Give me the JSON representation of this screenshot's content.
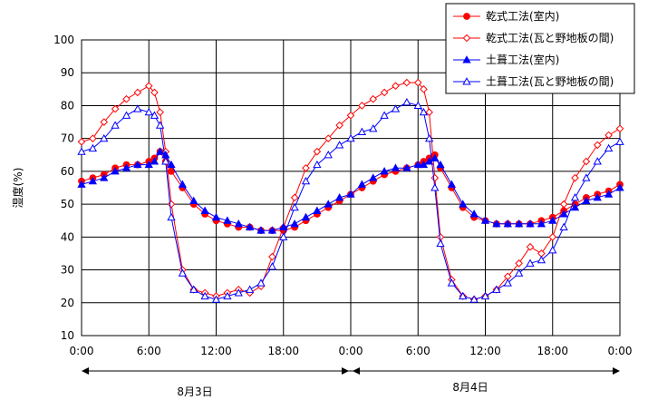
{
  "chart_data": {
    "type": "line",
    "ylabel": "湿度(%)",
    "xlabel": "",
    "ylim": [
      10,
      100
    ],
    "yticks": [
      "10",
      "20",
      "30",
      "40",
      "50",
      "60",
      "70",
      "80",
      "90",
      "100"
    ],
    "xticks": [
      "0:00",
      "6:00",
      "12:00",
      "18:00",
      "0:00",
      "6:00",
      "12:00",
      "18:00",
      "0:00"
    ],
    "xlim_hours": [
      0,
      48
    ],
    "grid": true,
    "legend_position": "top-right",
    "date_labels": [
      "8月3日",
      "8月4日"
    ],
    "x_hours": [
      0,
      1,
      2,
      3,
      4,
      5,
      6,
      6.5,
      7,
      7.5,
      8,
      9,
      10,
      11,
      12,
      13,
      14,
      15,
      16,
      17,
      18,
      19,
      20,
      21,
      22,
      23,
      24,
      25,
      26,
      27,
      28,
      29,
      30,
      30.5,
      31,
      31.5,
      32,
      33,
      34,
      35,
      36,
      37,
      38,
      39,
      40,
      41,
      42,
      43,
      44,
      45,
      46,
      47,
      48
    ],
    "series": [
      {
        "name": "乾式工法(室内)",
        "color": "#ff0000",
        "marker": "circle-filled",
        "values": [
          57,
          58,
          59,
          61,
          62,
          62,
          63,
          64,
          66,
          63,
          60,
          55,
          50,
          47,
          45,
          44,
          43,
          43,
          42,
          42,
          42,
          43,
          45,
          47,
          49,
          51,
          53,
          55,
          57,
          59,
          60,
          61,
          62,
          63,
          64,
          65,
          61,
          55,
          49,
          46,
          45,
          44,
          44,
          44,
          44,
          45,
          46,
          48,
          50,
          52,
          53,
          54,
          56
        ]
      },
      {
        "name": "乾式工法(瓦と野地板の間)",
        "color": "#ff0000",
        "marker": "diamond-open",
        "values": [
          69,
          70,
          75,
          79,
          82,
          84,
          86,
          84,
          78,
          66,
          50,
          30,
          24,
          23,
          22,
          23,
          24,
          23,
          25,
          34,
          43,
          52,
          61,
          66,
          70,
          74,
          77,
          80,
          82,
          84,
          86,
          87,
          87,
          85,
          78,
          58,
          40,
          27,
          22,
          21,
          22,
          24,
          28,
          32,
          37,
          35,
          40,
          50,
          58,
          63,
          68,
          71,
          73
        ]
      },
      {
        "name": "土葺工法(室内)",
        "color": "#0000ff",
        "marker": "triangle-filled",
        "values": [
          56,
          57,
          58,
          60,
          61,
          62,
          62,
          63,
          66,
          65,
          62,
          56,
          51,
          48,
          46,
          45,
          44,
          43,
          42,
          42,
          43,
          44,
          46,
          48,
          50,
          52,
          53,
          56,
          58,
          60,
          61,
          61,
          62,
          62,
          63,
          64,
          62,
          56,
          50,
          47,
          45,
          44,
          44,
          44,
          44,
          44,
          45,
          47,
          49,
          51,
          52,
          53,
          55
        ]
      },
      {
        "name": "土葺工法(瓦と野地板の間)",
        "color": "#0000ff",
        "marker": "triangle-open",
        "values": [
          66,
          67,
          70,
          74,
          77,
          79,
          78,
          77,
          74,
          63,
          46,
          29,
          24,
          22,
          21,
          22,
          23,
          24,
          26,
          31,
          40,
          49,
          57,
          62,
          65,
          68,
          70,
          72,
          73,
          77,
          79,
          81,
          80,
          78,
          70,
          55,
          38,
          26,
          22,
          21,
          22,
          24,
          26,
          29,
          32,
          33,
          36,
          43,
          52,
          58,
          63,
          67,
          69
        ]
      }
    ]
  }
}
